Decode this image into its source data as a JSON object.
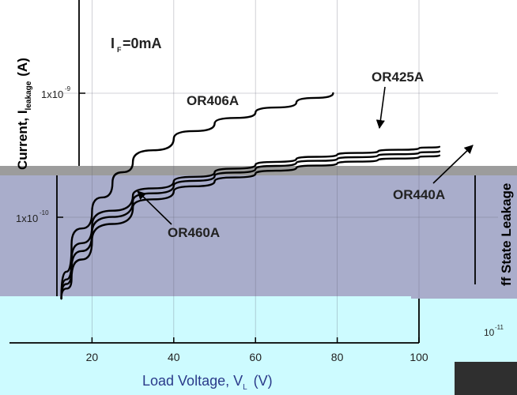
{
  "chart_data": {
    "type": "line",
    "title": "",
    "xlabel_main": "Load Voltage, V",
    "xlabel_sub": "L",
    "xlabel_unit": "(V)",
    "ylabel_main": "Current, I",
    "ylabel_sub": "leakage",
    "ylabel_unit": "(A)",
    "ylabel_right": "ff State Leakage",
    "condition_main": "I",
    "condition_sub": "F",
    "condition_value": "=0mA",
    "x_ticks": [
      "20",
      "40",
      "60",
      "80",
      "100"
    ],
    "y_ticks": [
      {
        "base": "1x10",
        "exp": "-9"
      },
      {
        "base": "1x10",
        "exp": "-10"
      }
    ],
    "y_tick_right": {
      "base": "10",
      "exp": "-11"
    },
    "xlim": [
      0,
      105
    ],
    "ylim": [
      1e-11,
      1e-08
    ],
    "y_scale": "log",
    "grid": true,
    "series": [
      {
        "name": "OR406A",
        "x": [
          12.5,
          15,
          20,
          25,
          30,
          40,
          50,
          60,
          70,
          79
        ],
        "y": [
          1e-11,
          6e-11,
          1.1e-10,
          1.9e-10,
          2.8e-10,
          4.3e-10,
          5.7e-10,
          7e-10,
          8.4e-10,
          1e-09
        ]
      },
      {
        "name": "OR425A",
        "x": [
          12.5,
          15,
          20,
          30,
          40,
          50,
          60,
          70,
          80,
          90,
          100,
          105
        ],
        "y": [
          1e-11,
          4.5e-11,
          8.5e-11,
          1.5e-10,
          1.95e-10,
          2.3e-10,
          2.65e-10,
          2.95e-10,
          3.2e-10,
          3.4e-10,
          3.6e-10,
          3.7e-10
        ]
      },
      {
        "name": "OR440A",
        "x": [
          12.5,
          15,
          20,
          30,
          40,
          50,
          60,
          70,
          80,
          90,
          100,
          105
        ],
        "y": [
          1e-11,
          3.8e-11,
          7.5e-11,
          1.35e-10,
          1.8e-10,
          2.15e-10,
          2.45e-10,
          2.75e-10,
          2.95e-10,
          3.15e-10,
          3.3e-10,
          3.4e-10
        ]
      },
      {
        "name": "OR460A",
        "x": [
          12.5,
          15,
          20,
          30,
          40,
          50,
          60,
          70,
          80,
          90,
          100,
          105
        ],
        "y": [
          1e-11,
          3.2e-11,
          6.5e-11,
          1.2e-10,
          1.62e-10,
          1.95e-10,
          2.25e-10,
          2.5e-10,
          2.72e-10,
          2.9e-10,
          3.05e-10,
          3.15e-10
        ]
      }
    ],
    "annotations": [
      {
        "series": "OR406A",
        "text": "OR406A"
      },
      {
        "series": "OR425A",
        "text": "OR425A"
      },
      {
        "series": "OR440A",
        "text": "OR440A"
      },
      {
        "series": "OR460A",
        "text": "OR460A"
      }
    ]
  }
}
